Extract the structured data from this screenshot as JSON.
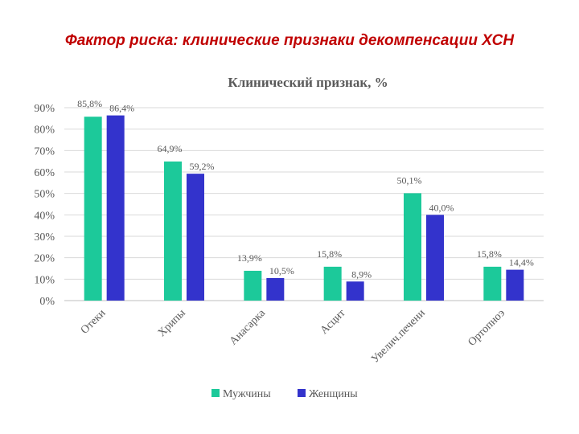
{
  "slide": {
    "title": "Фактор риска: клинические признаки декомпенсации ХСН"
  },
  "colors": {
    "men": "#1cc99a",
    "women": "#3333cc",
    "grid": "#d9d9d9",
    "title_red": "#c00000",
    "text": "#595959"
  },
  "chart_data": {
    "type": "bar",
    "title": "Клинический признак, %",
    "categories": [
      "Отеки",
      "Хрипы",
      "Анасарка",
      "Асцит",
      "Увелич.печени",
      "Ортопноэ"
    ],
    "series": [
      {
        "name": "Мужчины",
        "values": [
          85.8,
          64.9,
          13.9,
          15.8,
          50.1,
          15.8
        ],
        "labels": [
          "85,8%",
          "64,9%",
          "13,9%",
          "15,8%",
          "50,1%",
          "15,8%"
        ]
      },
      {
        "name": "Женщины",
        "values": [
          86.4,
          59.2,
          10.5,
          8.9,
          40.0,
          14.4
        ],
        "labels": [
          "86,4%",
          "59,2%",
          "10,5%",
          "8,9%",
          "40,0%",
          "14,4%"
        ]
      }
    ],
    "yticks": [
      "0%",
      "10%",
      "20%",
      "30%",
      "40%",
      "50%",
      "60%",
      "70%",
      "80%",
      "90%"
    ],
    "ylim": [
      0,
      90
    ],
    "grid": true,
    "legend": "bottom"
  }
}
